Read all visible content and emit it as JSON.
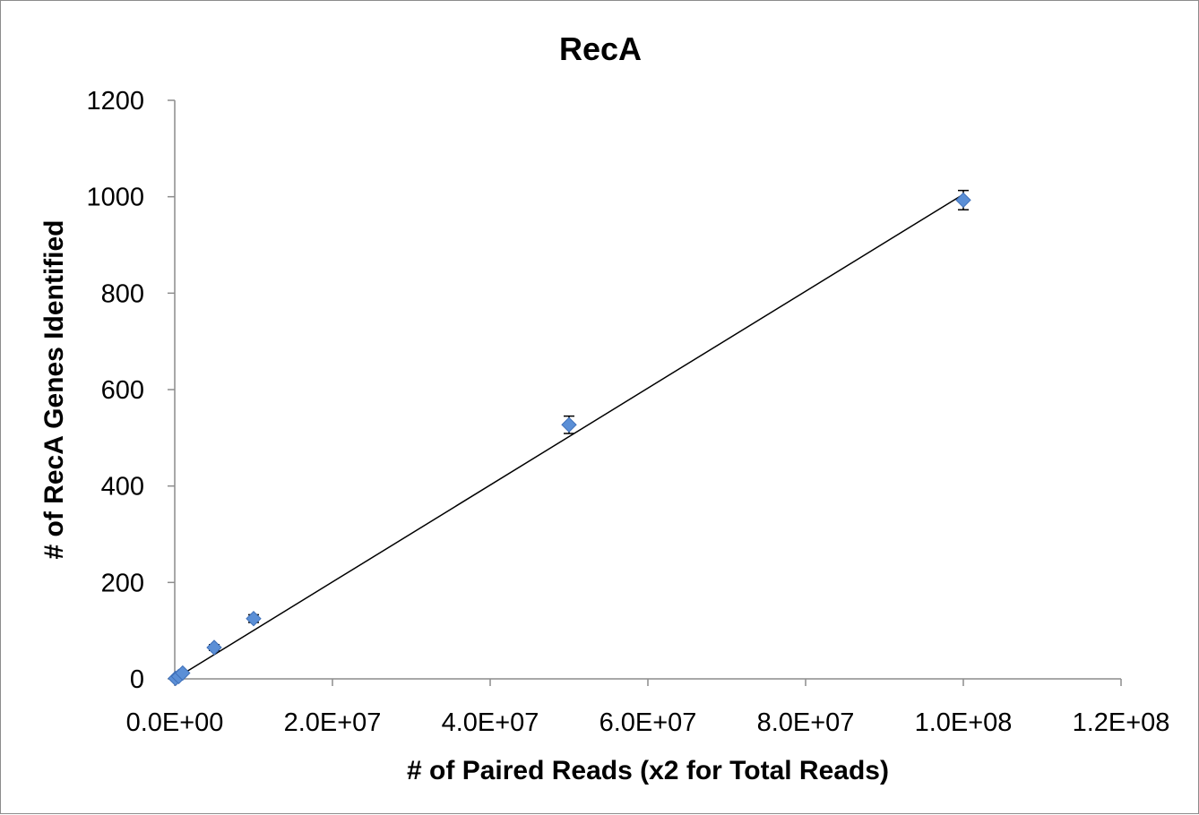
{
  "chart_data": {
    "type": "scatter",
    "title": "RecA",
    "xlabel": "# of Paired Reads (x2 for Total Reads)",
    "ylabel": "# of RecA Genes Identified",
    "xlim": [
      0,
      120000000
    ],
    "ylim": [
      0,
      1200
    ],
    "x_ticks": [
      {
        "value": 0,
        "label": "0.0E+00"
      },
      {
        "value": 20000000,
        "label": "2.0E+07"
      },
      {
        "value": 40000000,
        "label": "4.0E+07"
      },
      {
        "value": 60000000,
        "label": "6.0E+07"
      },
      {
        "value": 80000000,
        "label": "8.0E+07"
      },
      {
        "value": 100000000,
        "label": "1.0E+08"
      },
      {
        "value": 120000000,
        "label": "1.2E+08"
      }
    ],
    "y_ticks": [
      {
        "value": 0,
        "label": "0"
      },
      {
        "value": 200,
        "label": "200"
      },
      {
        "value": 400,
        "label": "400"
      },
      {
        "value": 600,
        "label": "600"
      },
      {
        "value": 800,
        "label": "800"
      },
      {
        "value": 1000,
        "label": "1000"
      },
      {
        "value": 1200,
        "label": "1200"
      }
    ],
    "grid": false,
    "legend": "none",
    "marker_color": "#5b8fd6",
    "marker_edge_color": "#3e6fb8",
    "series": [
      {
        "points": [
          {
            "x": 100000,
            "y": 1,
            "err": 0
          },
          {
            "x": 500000,
            "y": 5,
            "err": 1
          },
          {
            "x": 1000000,
            "y": 12,
            "err": 2
          },
          {
            "x": 5000000,
            "y": 65,
            "err": 6
          },
          {
            "x": 10000000,
            "y": 125,
            "err": 8
          },
          {
            "x": 50000000,
            "y": 527,
            "err": 18
          },
          {
            "x": 100000000,
            "y": 993,
            "err": 20
          }
        ]
      }
    ],
    "trendline": {
      "type": "linear",
      "x": [
        0,
        100000000
      ],
      "y": [
        0,
        1005
      ]
    }
  }
}
